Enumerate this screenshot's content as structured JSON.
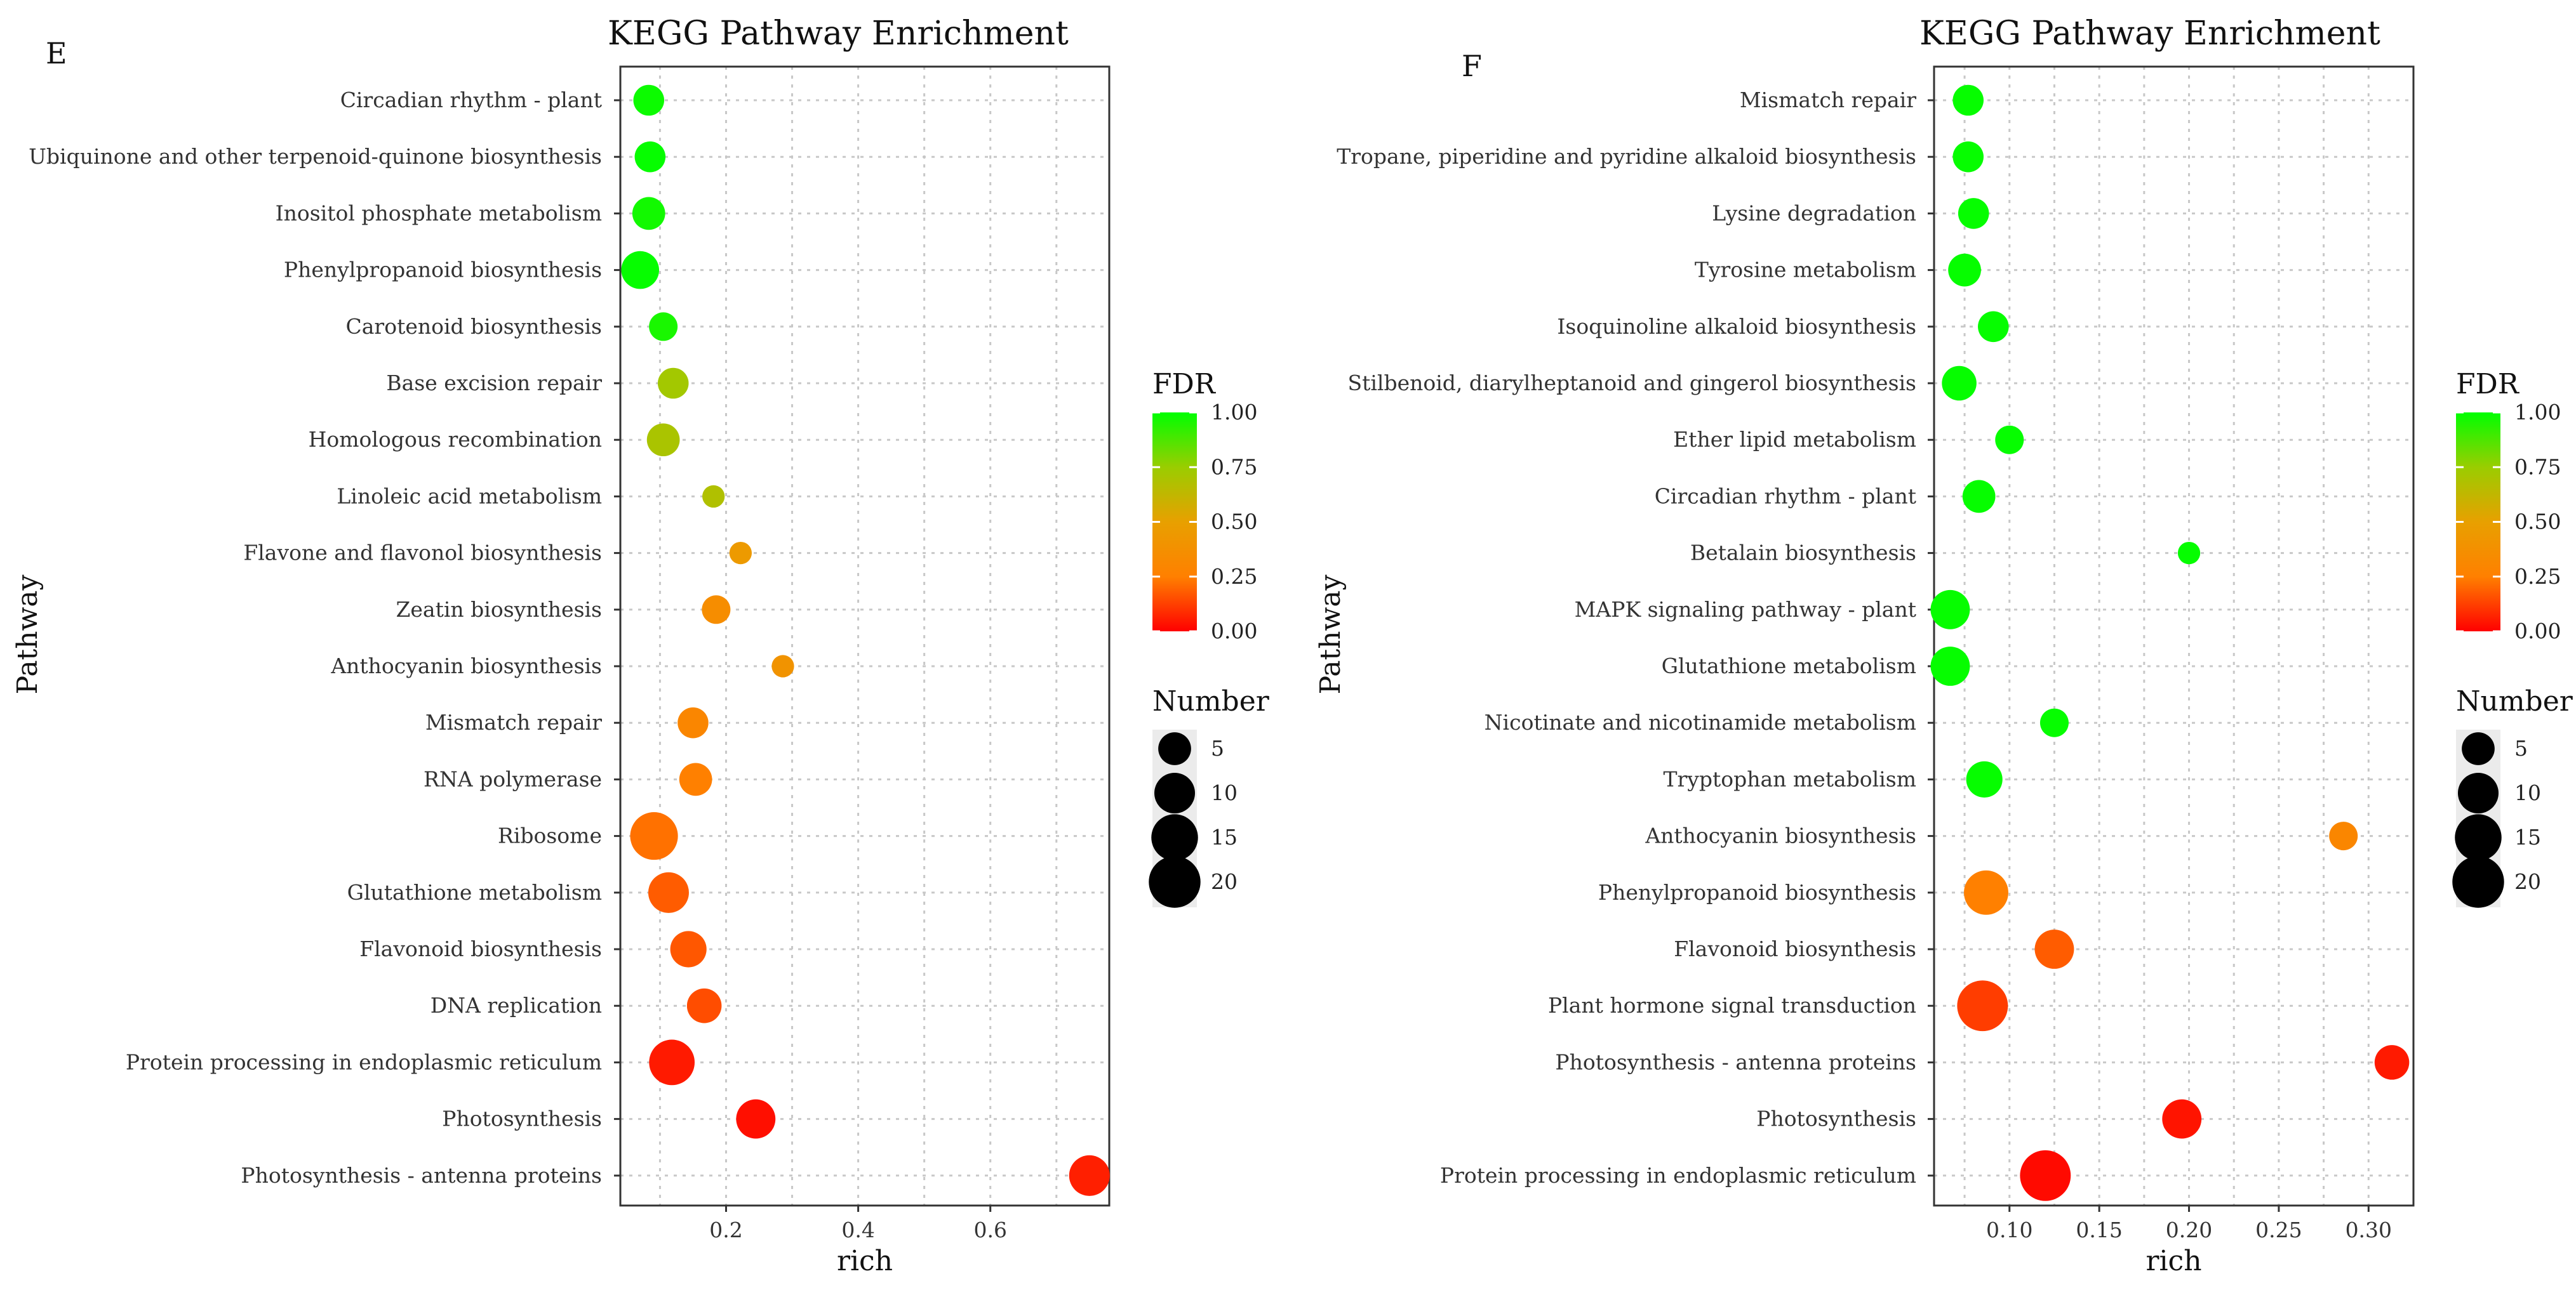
{
  "chart_data": [
    {
      "type": "scatter",
      "panel_label": "E",
      "title": "KEGG Pathway Enrichment",
      "xlabel": "rich",
      "ylabel": "Pathway",
      "xlim": [
        0.04,
        0.78
      ],
      "xticks": [
        0.2,
        0.4,
        0.6
      ],
      "xtick_labels": [
        "0.2",
        "0.4",
        "0.6"
      ],
      "grid": true,
      "categories": [
        "Circadian rhythm - plant",
        "Ubiquinone and other terpenoid-quinone biosynthesis",
        "Inositol phosphate metabolism",
        "Phenylpropanoid biosynthesis",
        "Carotenoid biosynthesis",
        "Base excision repair",
        "Homologous recombination",
        "Linoleic acid metabolism",
        "Flavone and flavonol biosynthesis",
        "Zeatin biosynthesis",
        "Anthocyanin biosynthesis",
        "Mismatch repair",
        "RNA polymerase",
        "Ribosome",
        "Glutathione metabolism",
        "Flavonoid biosynthesis",
        "DNA replication",
        "Protein processing in endoplasmic reticulum",
        "Photosynthesis",
        "Photosynthesis - antenna proteins"
      ],
      "rich": [
        0.083,
        0.085,
        0.083,
        0.07,
        0.105,
        0.12,
        0.105,
        0.181,
        0.222,
        0.185,
        0.286,
        0.15,
        0.154,
        0.091,
        0.113,
        0.143,
        0.167,
        0.118,
        0.245,
        0.75
      ],
      "fdr": [
        0.98,
        0.99,
        0.97,
        0.99,
        0.96,
        0.72,
        0.7,
        0.68,
        0.45,
        0.35,
        0.4,
        0.3,
        0.25,
        0.22,
        0.18,
        0.17,
        0.15,
        0.05,
        0.03,
        0.06
      ],
      "number": [
        4,
        4,
        5,
        8,
        3,
        4,
        5,
        1,
        1,
        3,
        1,
        4,
        5,
        16,
        10,
        7,
        6,
        14,
        9,
        10
      ]
    },
    {
      "type": "scatter",
      "panel_label": "F",
      "title": "KEGG Pathway Enrichment",
      "xlabel": "rich",
      "ylabel": "Pathway",
      "xlim": [
        0.058,
        0.325
      ],
      "xticks": [
        0.1,
        0.15,
        0.2,
        0.25,
        0.3
      ],
      "xtick_labels": [
        "0.10",
        "0.15",
        "0.20",
        "0.25",
        "0.30"
      ],
      "grid": true,
      "categories": [
        "Mismatch repair",
        "Tropane, piperidine and pyridine alkaloid biosynthesis",
        "Lysine degradation",
        "Tyrosine metabolism",
        "Isoquinoline alkaloid biosynthesis",
        "Stilbenoid, diarylheptanoid and gingerol biosynthesis",
        "Ether lipid metabolism",
        "Circadian rhythm - plant",
        "Betalain biosynthesis",
        "MAPK signaling pathway - plant",
        "Glutathione metabolism",
        "Nicotinate and nicotinamide metabolism",
        "Tryptophan metabolism",
        "Anthocyanin biosynthesis",
        "Phenylpropanoid biosynthesis",
        "Flavonoid biosynthesis",
        "Plant hormone signal transduction",
        "Photosynthesis - antenna proteins",
        "Photosynthesis",
        "Protein processing in endoplasmic reticulum"
      ],
      "rich": [
        0.077,
        0.077,
        0.08,
        0.075,
        0.091,
        0.072,
        0.1,
        0.083,
        0.2,
        0.067,
        0.067,
        0.125,
        0.086,
        0.286,
        0.087,
        0.125,
        0.085,
        0.313,
        0.196,
        0.12
      ],
      "fdr": [
        0.99,
        0.99,
        0.99,
        0.99,
        0.99,
        0.99,
        0.99,
        0.99,
        0.99,
        0.99,
        0.99,
        0.99,
        0.99,
        0.3,
        0.25,
        0.18,
        0.12,
        0.05,
        0.04,
        0.02
      ],
      "number": [
        4,
        4,
        4,
        5,
        4,
        6,
        3,
        5,
        1,
        9,
        9,
        3,
        7,
        3,
        13,
        9,
        19,
        6,
        9,
        19
      ]
    }
  ],
  "legend": {
    "fdr_title": "FDR",
    "fdr_labels": [
      "1.00",
      "0.75",
      "0.50",
      "0.25",
      "0.00"
    ],
    "number_title": "Number",
    "number_labels": [
      "5",
      "10",
      "15",
      "20"
    ],
    "number_values": [
      5,
      10,
      15,
      20
    ]
  },
  "colors": {
    "fdr_low": "#ff0000",
    "fdr_mid_low": "#ff8000",
    "fdr_mid": "#e8a000",
    "fdr_mid_high": "#9acd00",
    "fdr_high": "#00ff00"
  }
}
